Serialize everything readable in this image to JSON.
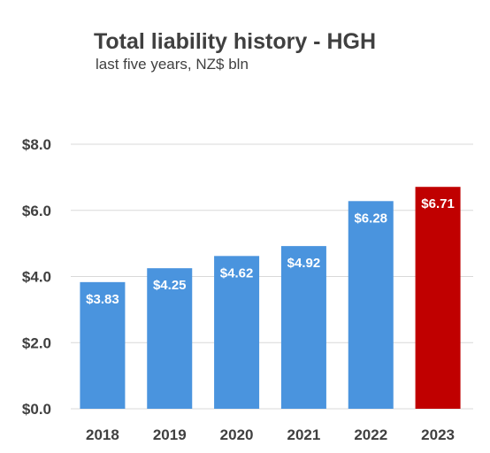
{
  "chart_data": {
    "type": "bar",
    "title": "Total liability history - HGH",
    "subtitle": "last five years, NZ$ bln",
    "categories": [
      "2018",
      "2019",
      "2020",
      "2021",
      "2022",
      "2023"
    ],
    "values": [
      3.83,
      4.25,
      4.62,
      4.92,
      6.28,
      6.71
    ],
    "data_labels": [
      "$3.83",
      "$4.25",
      "$4.62",
      "$4.92",
      "$6.28",
      "$6.71"
    ],
    "ylim": [
      0,
      8
    ],
    "yticks": [
      0,
      2,
      4,
      6,
      8
    ],
    "ytick_labels": [
      "$0.0",
      "$2.0",
      "$4.0",
      "$6.0",
      "$8.0"
    ],
    "grid": true,
    "bar_color": "#4a94de",
    "highlight_color": "#c00000",
    "highlight_index": 5,
    "xlabel": "",
    "ylabel": ""
  }
}
